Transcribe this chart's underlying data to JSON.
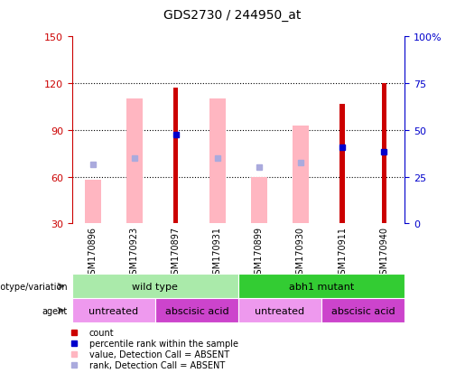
{
  "title": "GDS2730 / 244950_at",
  "samples": [
    "GSM170896",
    "GSM170923",
    "GSM170897",
    "GSM170931",
    "GSM170899",
    "GSM170930",
    "GSM170911",
    "GSM170940"
  ],
  "ylim_left": [
    30,
    150
  ],
  "ylim_right": [
    0,
    100
  ],
  "yticks_left": [
    30,
    60,
    90,
    120,
    150
  ],
  "yticks_right": [
    0,
    25,
    50,
    75,
    100
  ],
  "ytick_labels_right": [
    "0",
    "25",
    "50",
    "75",
    "100%"
  ],
  "pink_bar_bottoms": [
    30,
    30,
    30,
    30,
    30,
    30,
    30,
    30
  ],
  "pink_bar_tops": [
    58,
    110,
    30,
    110,
    60,
    93,
    30,
    30
  ],
  "red_bar_bottoms": [
    30,
    30,
    30,
    30,
    30,
    30,
    30,
    30
  ],
  "red_bar_tops": [
    30,
    30,
    117,
    30,
    30,
    30,
    107,
    120
  ],
  "blue_sq_y": [
    68,
    72,
    87,
    72,
    66,
    69,
    79,
    76
  ],
  "blue_sq_show": [
    false,
    false,
    true,
    false,
    false,
    false,
    true,
    true
  ],
  "light_blue_sq_y": [
    68,
    72,
    87,
    72,
    66,
    69,
    79,
    76
  ],
  "light_blue_sq_show": [
    true,
    true,
    false,
    true,
    true,
    true,
    false,
    false
  ],
  "genotype_groups": [
    {
      "label": "wild type",
      "start": 0,
      "end": 4,
      "color": "#AAEAAA"
    },
    {
      "label": "abh1 mutant",
      "start": 4,
      "end": 8,
      "color": "#33CC33"
    }
  ],
  "agent_groups": [
    {
      "label": "untreated",
      "start": 0,
      "end": 2,
      "color": "#EE99EE"
    },
    {
      "label": "abscisic acid",
      "start": 2,
      "end": 4,
      "color": "#CC44CC"
    },
    {
      "label": "untreated",
      "start": 4,
      "end": 6,
      "color": "#EE99EE"
    },
    {
      "label": "abscisic acid",
      "start": 6,
      "end": 8,
      "color": "#CC44CC"
    }
  ],
  "pink_color": "#FFB6C1",
  "red_color": "#CC0000",
  "blue_color": "#0000CC",
  "light_blue_color": "#AAAADD",
  "left_axis_color": "#CC0000",
  "right_axis_color": "#0000CC",
  "grid_color": "#000000",
  "plot_bg_color": "#FFFFFF",
  "sample_label_bg": "#C8C8C8",
  "legend_colors": [
    "#CC0000",
    "#0000CC",
    "#FFB6C1",
    "#AAAADD"
  ],
  "legend_labels": [
    "count",
    "percentile rank within the sample",
    "value, Detection Call = ABSENT",
    "rank, Detection Call = ABSENT"
  ]
}
